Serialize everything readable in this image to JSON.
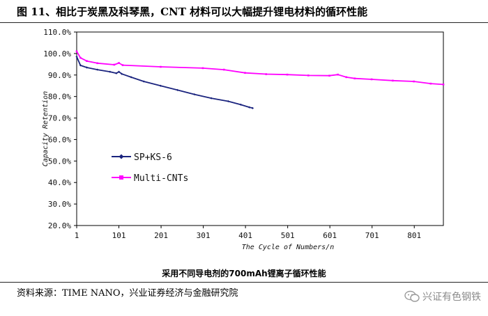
{
  "figure": {
    "title": "图 11、相比于炭黑及科琴黑，CNT 材料可以大幅提升锂电材料的循环性能",
    "subtitle": "采用不同导电剂的700mAh锂离子循环性能",
    "source": "资料来源：TIME NANO，兴业证券经济与金融研究院",
    "watermark": "兴证有色钢铁",
    "watermark_icon": "wechat-icon"
  },
  "chart_data": {
    "type": "line",
    "title": "",
    "xlabel": "The Cycle of Numbers/n",
    "ylabel": "Capacity Retention",
    "xlim": [
      1,
      870
    ],
    "ylim": [
      20,
      110
    ],
    "x_ticks": [
      1,
      101,
      201,
      301,
      401,
      501,
      601,
      701,
      801
    ],
    "y_ticks": [
      {
        "value": 20,
        "label": "20.0%"
      },
      {
        "value": 30,
        "label": "30.0%"
      },
      {
        "value": 40,
        "label": "40.0%"
      },
      {
        "value": 50,
        "label": "50.0%"
      },
      {
        "value": 60,
        "label": "60.0%"
      },
      {
        "value": 70,
        "label": "70.0%"
      },
      {
        "value": 80,
        "label": "80.0%"
      },
      {
        "value": 90,
        "label": "90.0%"
      },
      {
        "value": 100,
        "label": "100.0%"
      },
      {
        "value": 110,
        "label": "110.0%"
      }
    ],
    "grid": false,
    "legend_position": "middle-left",
    "series": [
      {
        "name": "SP+KS-6",
        "color": "#1a237e",
        "marker": "diamond",
        "points": [
          [
            1,
            98.5
          ],
          [
            10,
            94.5
          ],
          [
            25,
            93.5
          ],
          [
            50,
            92.5
          ],
          [
            80,
            91.5
          ],
          [
            95,
            90.8
          ],
          [
            101,
            91.5
          ],
          [
            108,
            90.5
          ],
          [
            130,
            89
          ],
          [
            160,
            87
          ],
          [
            200,
            85
          ],
          [
            240,
            83
          ],
          [
            280,
            81
          ],
          [
            320,
            79.2
          ],
          [
            360,
            77.8
          ],
          [
            390,
            76.2
          ],
          [
            410,
            75
          ],
          [
            418,
            74.6
          ]
        ]
      },
      {
        "name": "Multi-CNTs",
        "color": "#ff00ff",
        "marker": "square",
        "points": [
          [
            1,
            101
          ],
          [
            10,
            98
          ],
          [
            25,
            96.5
          ],
          [
            50,
            95.5
          ],
          [
            90,
            94.8
          ],
          [
            101,
            95.6
          ],
          [
            110,
            94.6
          ],
          [
            200,
            93.8
          ],
          [
            300,
            93.2
          ],
          [
            350,
            92.5
          ],
          [
            400,
            91
          ],
          [
            450,
            90.4
          ],
          [
            500,
            90.2
          ],
          [
            550,
            89.8
          ],
          [
            600,
            89.7
          ],
          [
            620,
            90.2
          ],
          [
            640,
            89
          ],
          [
            660,
            88.4
          ],
          [
            700,
            88
          ],
          [
            750,
            87.4
          ],
          [
            800,
            87
          ],
          [
            840,
            86
          ],
          [
            870,
            85.6
          ]
        ]
      }
    ]
  }
}
